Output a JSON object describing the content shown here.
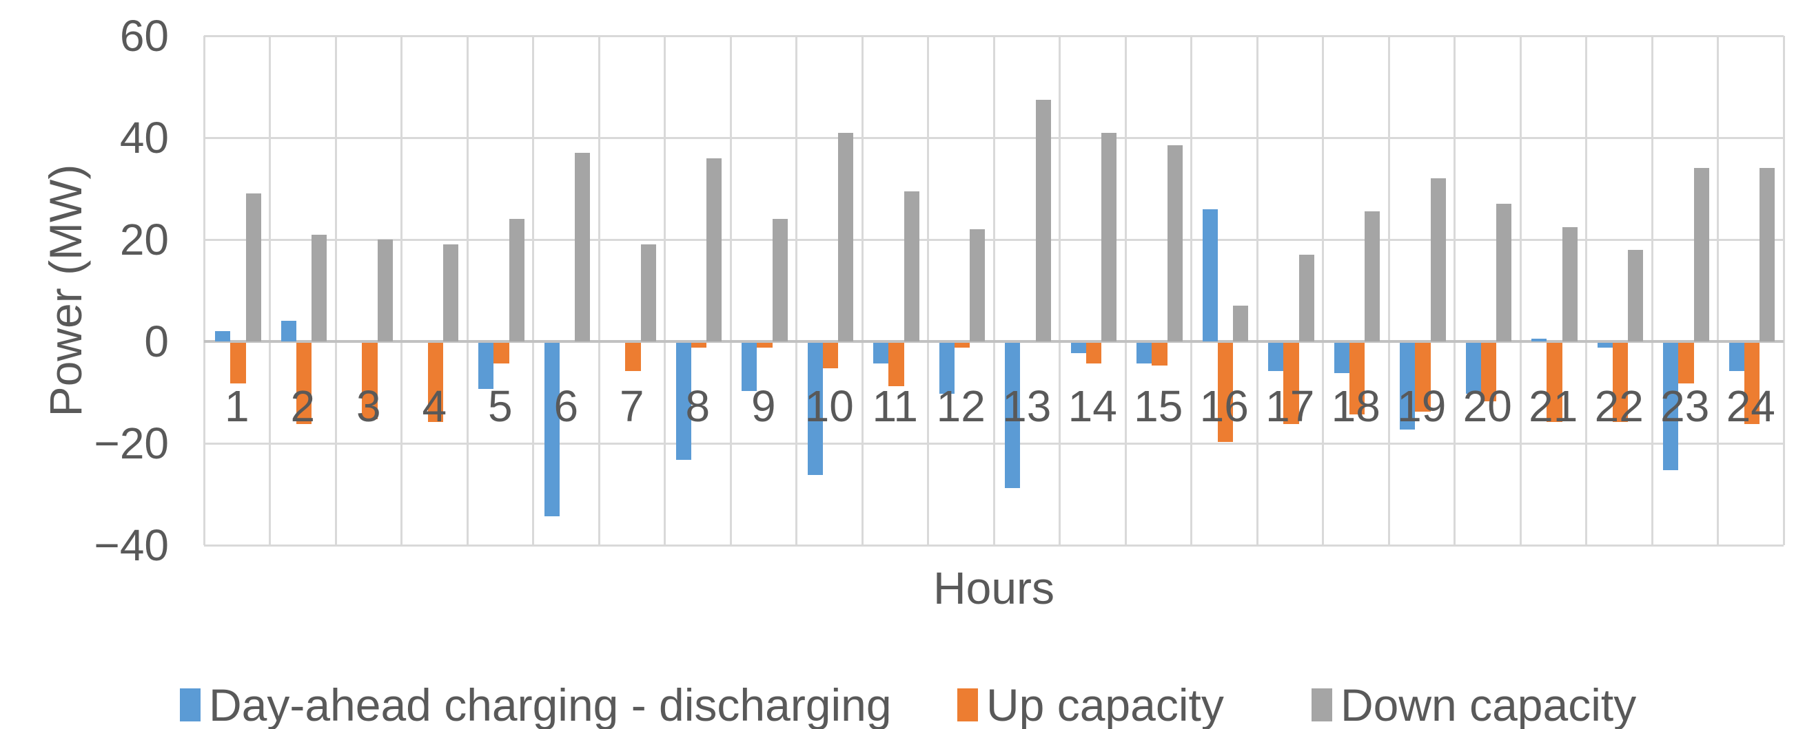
{
  "chart_data": {
    "type": "bar",
    "title": "",
    "xlabel": "Hours",
    "ylabel": "Power (MW)",
    "categories": [
      1,
      2,
      3,
      4,
      5,
      6,
      7,
      8,
      9,
      10,
      11,
      12,
      13,
      14,
      15,
      16,
      17,
      18,
      19,
      20,
      21,
      22,
      23,
      24
    ],
    "series": [
      {
        "key": "day-ahead-charging-discharging",
        "name": "Day-ahead charging - discharging",
        "color": "#5B9BD5",
        "values": [
          2,
          4,
          0,
          0,
          -9,
          -34,
          0,
          -23,
          -9.5,
          -26,
          -4,
          -10,
          -28.5,
          -2,
          -4,
          26,
          -5.5,
          -6,
          -17,
          -10,
          0.5,
          -1,
          -25,
          -5.5
        ]
      },
      {
        "key": "up-capacity",
        "name": "Up capacity",
        "color": "#ED7D31",
        "values": [
          -8,
          -16,
          -15,
          -15.5,
          -4,
          0,
          -5.5,
          -1,
          -1,
          -5,
          -8.5,
          -1,
          0,
          -4,
          -4.5,
          -19.5,
          -16,
          -14,
          -13.5,
          -11.5,
          -15.5,
          -15.5,
          -8,
          -16
        ]
      },
      {
        "key": "down-capacity",
        "name": "Down capacity",
        "color": "#A5A5A5",
        "values": [
          29,
          21,
          20,
          19,
          24,
          37,
          19,
          36,
          24,
          41,
          29.5,
          22,
          47.5,
          41,
          38.5,
          7,
          17,
          25.5,
          32,
          27,
          22.5,
          18,
          34,
          34
        ]
      }
    ],
    "ylim": [
      -40,
      60
    ],
    "y_ticks": [
      60,
      40,
      20,
      0,
      -20,
      -40
    ],
    "grid": true,
    "legend_position": "bottom"
  },
  "style_colors": {
    "axis_text": "#595959",
    "gridline": "#D9D9D9",
    "axis_line": "#C1C1C1",
    "background": "#FFFFFF"
  }
}
